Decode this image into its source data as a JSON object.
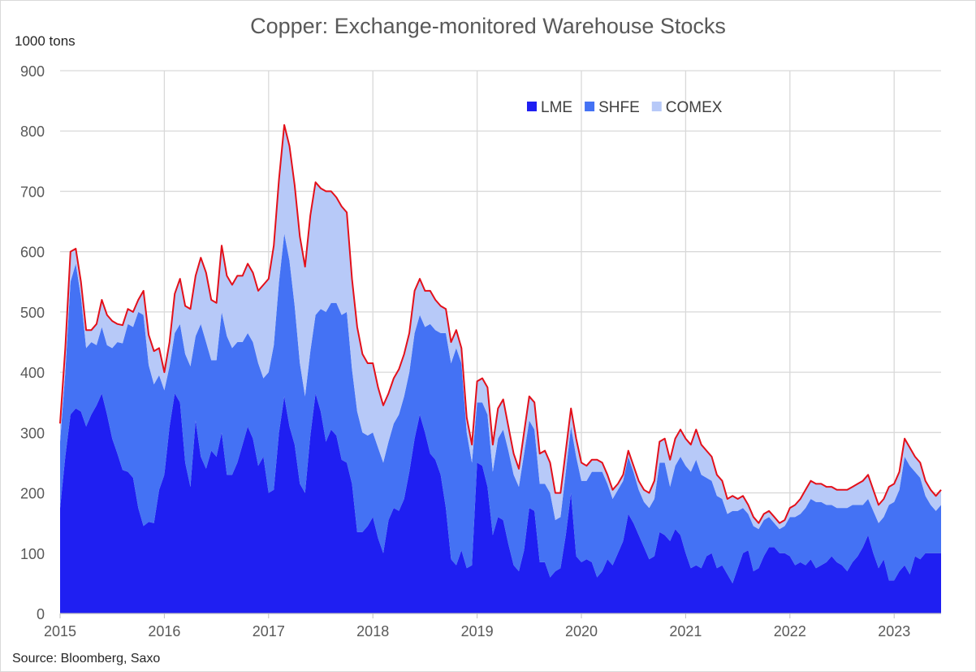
{
  "chart_data": {
    "type": "area",
    "stacked": true,
    "title": "Copper: Exchange-monitored Warehouse Stocks",
    "ylabel": "1000 tons",
    "xlabel": "",
    "source": "Source: Bloomberg, Saxo",
    "ylim": [
      0,
      900
    ],
    "xlim": [
      2015.0,
      2023.45
    ],
    "yticks": [
      0,
      100,
      200,
      300,
      400,
      500,
      600,
      700,
      800,
      900
    ],
    "xticks": [
      2015,
      2016,
      2017,
      2018,
      2019,
      2020,
      2021,
      2022,
      2023
    ],
    "xtick_labels": [
      "2015",
      "2016",
      "2017",
      "2018",
      "2019",
      "2020",
      "2021",
      "2022",
      "2023"
    ],
    "grid": true,
    "legend_position": "top-right",
    "total_line_color": "#e3101a",
    "x": [
      2015.0,
      2015.05,
      2015.1,
      2015.15,
      2015.2,
      2015.25,
      2015.3,
      2015.35,
      2015.4,
      2015.45,
      2015.5,
      2015.55,
      2015.6,
      2015.65,
      2015.7,
      2015.75,
      2015.8,
      2015.85,
      2015.9,
      2015.95,
      2016.0,
      2016.05,
      2016.1,
      2016.15,
      2016.2,
      2016.25,
      2016.3,
      2016.35,
      2016.4,
      2016.45,
      2016.5,
      2016.55,
      2016.6,
      2016.65,
      2016.7,
      2016.75,
      2016.8,
      2016.85,
      2016.9,
      2016.95,
      2017.0,
      2017.05,
      2017.1,
      2017.15,
      2017.2,
      2017.25,
      2017.3,
      2017.35,
      2017.4,
      2017.45,
      2017.5,
      2017.55,
      2017.6,
      2017.65,
      2017.7,
      2017.75,
      2017.8,
      2017.85,
      2017.9,
      2017.95,
      2018.0,
      2018.05,
      2018.1,
      2018.15,
      2018.2,
      2018.25,
      2018.3,
      2018.35,
      2018.4,
      2018.45,
      2018.5,
      2018.55,
      2018.6,
      2018.65,
      2018.7,
      2018.75,
      2018.8,
      2018.85,
      2018.9,
      2018.95,
      2019.0,
      2019.05,
      2019.1,
      2019.15,
      2019.2,
      2019.25,
      2019.3,
      2019.35,
      2019.4,
      2019.45,
      2019.5,
      2019.55,
      2019.6,
      2019.65,
      2019.7,
      2019.75,
      2019.8,
      2019.85,
      2019.9,
      2019.95,
      2020.0,
      2020.05,
      2020.1,
      2020.15,
      2020.2,
      2020.25,
      2020.3,
      2020.35,
      2020.4,
      2020.45,
      2020.5,
      2020.55,
      2020.6,
      2020.65,
      2020.7,
      2020.75,
      2020.8,
      2020.85,
      2020.9,
      2020.95,
      2021.0,
      2021.05,
      2021.1,
      2021.15,
      2021.2,
      2021.25,
      2021.3,
      2021.35,
      2021.4,
      2021.45,
      2021.5,
      2021.55,
      2021.6,
      2021.65,
      2021.7,
      2021.75,
      2021.8,
      2021.85,
      2021.9,
      2021.95,
      2022.0,
      2022.05,
      2022.1,
      2022.15,
      2022.2,
      2022.25,
      2022.3,
      2022.35,
      2022.4,
      2022.45,
      2022.5,
      2022.55,
      2022.6,
      2022.65,
      2022.7,
      2022.75,
      2022.8,
      2022.85,
      2022.9,
      2022.95,
      2023.0,
      2023.05,
      2023.1,
      2023.15,
      2023.2,
      2023.25,
      2023.3,
      2023.35,
      2023.4,
      2023.45
    ],
    "series": [
      {
        "name": "LME",
        "color": "#1f1ff2",
        "values": [
          175,
          260,
          330,
          340,
          335,
          310,
          330,
          345,
          365,
          330,
          290,
          265,
          238,
          235,
          225,
          175,
          145,
          152,
          150,
          205,
          230,
          310,
          365,
          350,
          250,
          210,
          320,
          260,
          240,
          270,
          260,
          300,
          230,
          230,
          250,
          280,
          310,
          290,
          245,
          260,
          200,
          205,
          300,
          360,
          310,
          280,
          215,
          200,
          295,
          365,
          335,
          285,
          305,
          295,
          255,
          250,
          215,
          135,
          135,
          145,
          160,
          125,
          100,
          155,
          175,
          170,
          190,
          235,
          290,
          330,
          300,
          265,
          255,
          230,
          175,
          90,
          80,
          105,
          75,
          80,
          250,
          245,
          210,
          130,
          160,
          155,
          115,
          80,
          70,
          105,
          175,
          170,
          85,
          85,
          60,
          70,
          75,
          130,
          200,
          95,
          85,
          90,
          85,
          60,
          70,
          90,
          80,
          100,
          120,
          165,
          150,
          130,
          110,
          90,
          95,
          135,
          130,
          120,
          140,
          130,
          100,
          75,
          80,
          75,
          95,
          100,
          75,
          80,
          65,
          50,
          75,
          100,
          105,
          70,
          75,
          95,
          110,
          110,
          100,
          100,
          95,
          80,
          85,
          80,
          90,
          75,
          80,
          85,
          95,
          85,
          80,
          70,
          85,
          95,
          110,
          130,
          100,
          75,
          90,
          55,
          55,
          70,
          80,
          65,
          95,
          90,
          100,
          100,
          100,
          100
        ]
      },
      {
        "name": "SHFE",
        "color": "#4472f4",
        "values": [
          110,
          140,
          220,
          240,
          190,
          130,
          120,
          100,
          110,
          115,
          150,
          185,
          210,
          245,
          250,
          325,
          350,
          260,
          230,
          190,
          140,
          100,
          100,
          130,
          180,
          200,
          140,
          220,
          210,
          150,
          160,
          200,
          230,
          210,
          200,
          170,
          155,
          160,
          170,
          130,
          200,
          240,
          250,
          270,
          275,
          230,
          200,
          160,
          140,
          130,
          170,
          215,
          210,
          220,
          240,
          250,
          190,
          200,
          165,
          150,
          140,
          150,
          150,
          130,
          140,
          160,
          170,
          165,
          175,
          165,
          175,
          215,
          215,
          235,
          290,
          325,
          360,
          310,
          225,
          170,
          100,
          105,
          120,
          105,
          130,
          150,
          155,
          150,
          140,
          160,
          145,
          135,
          130,
          130,
          140,
          85,
          85,
          105,
          110,
          165,
          135,
          130,
          150,
          175,
          165,
          125,
          110,
          105,
          100,
          95,
          85,
          75,
          75,
          85,
          95,
          115,
          120,
          90,
          105,
          130,
          145,
          160,
          175,
          155,
          130,
          120,
          120,
          110,
          100,
          120,
          95,
          75,
          60,
          75,
          65,
          60,
          50,
          40,
          40,
          45,
          65,
          80,
          80,
          95,
          100,
          110,
          105,
          95,
          85,
          90,
          95,
          105,
          95,
          85,
          70,
          60,
          70,
          75,
          70,
          125,
          130,
          135,
          180,
          180,
          140,
          135,
          95,
          80,
          70,
          80
        ]
      },
      {
        "name": "COMEX",
        "color": "#b7c9f8",
        "values": [
          30,
          40,
          50,
          25,
          25,
          30,
          20,
          35,
          45,
          50,
          45,
          30,
          30,
          25,
          25,
          20,
          40,
          50,
          55,
          45,
          30,
          40,
          65,
          75,
          80,
          95,
          100,
          110,
          115,
          100,
          95,
          110,
          100,
          105,
          110,
          110,
          115,
          115,
          120,
          155,
          155,
          165,
          170,
          180,
          190,
          200,
          210,
          215,
          225,
          220,
          200,
          200,
          185,
          175,
          180,
          165,
          150,
          140,
          130,
          120,
          115,
          100,
          95,
          80,
          75,
          75,
          70,
          65,
          70,
          60,
          60,
          55,
          50,
          45,
          40,
          35,
          30,
          25,
          25,
          30,
          35,
          40,
          45,
          45,
          50,
          50,
          40,
          35,
          30,
          35,
          40,
          45,
          50,
          55,
          50,
          45,
          40,
          35,
          30,
          30,
          30,
          25,
          20,
          20,
          15,
          15,
          15,
          10,
          10,
          10,
          10,
          15,
          20,
          25,
          30,
          35,
          40,
          45,
          45,
          45,
          45,
          45,
          50,
          50,
          45,
          40,
          35,
          30,
          25,
          25,
          20,
          20,
          15,
          15,
          10,
          10,
          10,
          10,
          10,
          10,
          15,
          20,
          25,
          30,
          30,
          30,
          30,
          30,
          30,
          30,
          30,
          30,
          30,
          35,
          40,
          40,
          35,
          30,
          30,
          30,
          30,
          30,
          30,
          30,
          25,
          25,
          25,
          25,
          25,
          25
        ]
      }
    ],
    "total_line_values": [
      315,
      440,
      600,
      605,
      550,
      470,
      470,
      480,
      520,
      495,
      485,
      480,
      478,
      505,
      500,
      520,
      535,
      462,
      435,
      440,
      400,
      450,
      530,
      555,
      510,
      505,
      560,
      590,
      565,
      520,
      515,
      610,
      560,
      545,
      560,
      560,
      580,
      565,
      535,
      545,
      555,
      610,
      720,
      810,
      775,
      710,
      625,
      575,
      660,
      715,
      705,
      700,
      700,
      690,
      675,
      665,
      555,
      475,
      430,
      415,
      415,
      375,
      345,
      365,
      390,
      405,
      430,
      465,
      535,
      555,
      535,
      535,
      520,
      510,
      505,
      450,
      470,
      440,
      325,
      280,
      385,
      390,
      375,
      280,
      340,
      355,
      310,
      265,
      240,
      300,
      360,
      350,
      265,
      270,
      250,
      200,
      200,
      270,
      340,
      290,
      250,
      245,
      255,
      255,
      250,
      230,
      205,
      215,
      230,
      270,
      245,
      220,
      205,
      200,
      220,
      285,
      290,
      255,
      290,
      305,
      290,
      280,
      305,
      280,
      270,
      260,
      230,
      220,
      190,
      195,
      190,
      195,
      180,
      160,
      150,
      165,
      170,
      160,
      150,
      155,
      175,
      180,
      190,
      205,
      220,
      215,
      215,
      210,
      210,
      205,
      205,
      205,
      210,
      215,
      220,
      230,
      205,
      180,
      190,
      210,
      215,
      235,
      290,
      275,
      260,
      250,
      220,
      205,
      195,
      205
    ]
  }
}
